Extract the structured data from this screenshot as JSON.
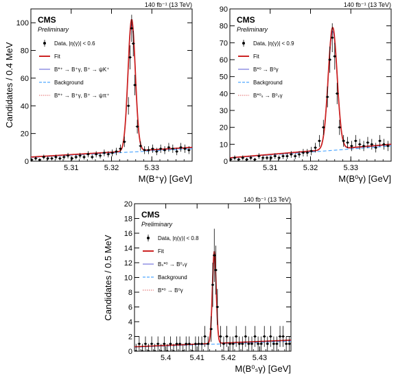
{
  "colors": {
    "data": "#000000",
    "fit": "#cc2222",
    "signal": "#5a5ad6",
    "background": "#4da6ff",
    "secondary": "#e06060"
  },
  "chart_data": [
    {
      "type": "scatter",
      "cms_label": "CMS",
      "preliminary_label": "Preliminary",
      "lumi_label": "140 fb⁻¹ (13 TeV)",
      "xlabel": "M(B⁺γ) [GeV]",
      "ylabel": "Candidates / 0.4 MeV",
      "xlim": [
        5.3,
        5.34
      ],
      "ylim": [
        0,
        110
      ],
      "xticks": [
        "5.31",
        "5.32",
        "5.33"
      ],
      "yticks": [
        "0",
        "20",
        "40",
        "60",
        "80",
        "100"
      ],
      "peak": 5.325,
      "peak_height": 95,
      "sigma": 0.0009,
      "bkg_left": 3,
      "bkg_right": 10,
      "legend": {
        "data": "Data, |η(γ)| < 0.6",
        "fit": "Fit",
        "signal": "B*⁺ → B⁺γ, B⁺ → ψK⁺",
        "background": "Background",
        "secondary": "B*⁺ → B⁺γ, B⁺ → ψπ⁺"
      },
      "points": [
        [
          5.3002,
          1
        ],
        [
          5.3012,
          2
        ],
        [
          5.3022,
          1
        ],
        [
          5.3032,
          3
        ],
        [
          5.3042,
          2
        ],
        [
          5.3052,
          2
        ],
        [
          5.3062,
          3
        ],
        [
          5.3072,
          2
        ],
        [
          5.3082,
          3
        ],
        [
          5.3092,
          4
        ],
        [
          5.3102,
          2
        ],
        [
          5.3112,
          3
        ],
        [
          5.3122,
          4
        ],
        [
          5.3132,
          3
        ],
        [
          5.3142,
          5
        ],
        [
          5.3152,
          3
        ],
        [
          5.3162,
          5
        ],
        [
          5.3172,
          4
        ],
        [
          5.3182,
          6
        ],
        [
          5.3192,
          5
        ],
        [
          5.3202,
          6
        ],
        [
          5.3212,
          7
        ],
        [
          5.3222,
          9
        ],
        [
          5.3232,
          14
        ],
        [
          5.3242,
          40
        ],
        [
          5.3246,
          75
        ],
        [
          5.325,
          96
        ],
        [
          5.3254,
          85
        ],
        [
          5.3258,
          55
        ],
        [
          5.3264,
          25
        ],
        [
          5.3272,
          11
        ],
        [
          5.3282,
          8
        ],
        [
          5.3292,
          8
        ],
        [
          5.3302,
          9
        ],
        [
          5.3312,
          7
        ],
        [
          5.3322,
          9
        ],
        [
          5.3332,
          8
        ],
        [
          5.3342,
          10
        ],
        [
          5.3352,
          9
        ],
        [
          5.3362,
          7
        ],
        [
          5.3372,
          10
        ],
        [
          5.3382,
          9
        ],
        [
          5.3392,
          8
        ]
      ]
    },
    {
      "type": "scatter",
      "cms_label": "CMS",
      "preliminary_label": "Preliminary",
      "lumi_label": "140 fb⁻¹ (13 TeV)",
      "xlabel": "M(B⁰γ) [GeV]",
      "ylabel": "",
      "xlim": [
        5.3,
        5.34
      ],
      "ylim": [
        0,
        90
      ],
      "xticks": [
        "5.31",
        "5.32",
        "5.33"
      ],
      "yticks": [
        "0",
        "10",
        "20",
        "30",
        "40",
        "50",
        "60",
        "70",
        "80",
        "90"
      ],
      "peak": 5.3255,
      "peak_height": 72,
      "sigma": 0.0011,
      "bkg_left": 2,
      "bkg_right": 10,
      "legend": {
        "data": "Data, |η(γ)| < 0.9",
        "fit": "Fit",
        "signal": "B*⁰ → B⁰γ",
        "background": "Background",
        "secondary": "B*⁰ₛ → B⁰ₛγ"
      },
      "points": [
        [
          5.3002,
          1
        ],
        [
          5.3012,
          2
        ],
        [
          5.3022,
          1
        ],
        [
          5.3032,
          2
        ],
        [
          5.3042,
          1
        ],
        [
          5.3052,
          2
        ],
        [
          5.3062,
          1
        ],
        [
          5.3072,
          3
        ],
        [
          5.3082,
          2
        ],
        [
          5.3092,
          2
        ],
        [
          5.3102,
          2
        ],
        [
          5.3112,
          3
        ],
        [
          5.3122,
          2
        ],
        [
          5.3132,
          3
        ],
        [
          5.3142,
          3
        ],
        [
          5.3152,
          4
        ],
        [
          5.3162,
          3
        ],
        [
          5.3172,
          4
        ],
        [
          5.3182,
          5
        ],
        [
          5.3192,
          5
        ],
        [
          5.3202,
          6
        ],
        [
          5.3212,
          8
        ],
        [
          5.3222,
          12
        ],
        [
          5.3232,
          20
        ],
        [
          5.3242,
          38
        ],
        [
          5.3248,
          60
        ],
        [
          5.3254,
          73
        ],
        [
          5.326,
          62
        ],
        [
          5.3266,
          40
        ],
        [
          5.3272,
          20
        ],
        [
          5.3282,
          12
        ],
        [
          5.3292,
          11
        ],
        [
          5.3302,
          9
        ],
        [
          5.3312,
          12
        ],
        [
          5.3322,
          10
        ],
        [
          5.3332,
          9
        ],
        [
          5.3342,
          11
        ],
        [
          5.3352,
          10
        ],
        [
          5.3362,
          8
        ],
        [
          5.3372,
          12
        ],
        [
          5.3382,
          10
        ],
        [
          5.3392,
          9
        ]
      ]
    },
    {
      "type": "scatter",
      "cms_label": "CMS",
      "preliminary_label": "Preliminary",
      "lumi_label": "140 fb⁻¹ (13 TeV)",
      "xlabel": "M(B⁰ₛγ) [GeV]",
      "ylabel": "Candidates / 0.5 MeV",
      "xlim": [
        5.39,
        5.44
      ],
      "ylim": [
        0,
        20
      ],
      "xticks": [
        "5.4",
        "5.41",
        "5.42",
        "5.43"
      ],
      "yticks": [
        "0",
        "2",
        "4",
        "6",
        "8",
        "10",
        "12",
        "14",
        "16",
        "18",
        "20"
      ],
      "peak": 5.4155,
      "peak_height": 12.5,
      "sigma": 0.0006,
      "bkg_left": 0.6,
      "bkg_right": 1.5,
      "legend": {
        "data": "Data, |η(γ)| < 0.8",
        "fit": "Fit",
        "signal": "Bₛ*⁰ → B⁰ₛγ",
        "background": "Background",
        "secondary": "B*⁰ → B⁰γ"
      },
      "points": [
        [
          5.3905,
          0
        ],
        [
          5.3915,
          1
        ],
        [
          5.3925,
          0
        ],
        [
          5.3935,
          1
        ],
        [
          5.3945,
          0
        ],
        [
          5.3955,
          1
        ],
        [
          5.3965,
          0
        ],
        [
          5.3975,
          1
        ],
        [
          5.3985,
          0
        ],
        [
          5.3995,
          1
        ],
        [
          5.4005,
          0
        ],
        [
          5.4015,
          1
        ],
        [
          5.4025,
          0
        ],
        [
          5.4035,
          1
        ],
        [
          5.4045,
          1
        ],
        [
          5.4055,
          0
        ],
        [
          5.4065,
          1
        ],
        [
          5.4075,
          1
        ],
        [
          5.4085,
          0
        ],
        [
          5.4095,
          1
        ],
        [
          5.4105,
          1
        ],
        [
          5.4115,
          1
        ],
        [
          5.4125,
          2
        ],
        [
          5.4135,
          1
        ],
        [
          5.4145,
          3
        ],
        [
          5.415,
          9
        ],
        [
          5.4155,
          13
        ],
        [
          5.416,
          11
        ],
        [
          5.4165,
          6
        ],
        [
          5.4175,
          2
        ],
        [
          5.4185,
          1
        ],
        [
          5.4195,
          2
        ],
        [
          5.4205,
          1
        ],
        [
          5.4215,
          1
        ],
        [
          5.4225,
          2
        ],
        [
          5.4235,
          1
        ],
        [
          5.4245,
          1
        ],
        [
          5.4255,
          2
        ],
        [
          5.4265,
          1
        ],
        [
          5.4275,
          1
        ],
        [
          5.4285,
          2
        ],
        [
          5.4295,
          1
        ],
        [
          5.4305,
          1
        ],
        [
          5.4315,
          2
        ],
        [
          5.4325,
          1
        ],
        [
          5.4335,
          2
        ],
        [
          5.4345,
          1
        ],
        [
          5.4355,
          1
        ],
        [
          5.4365,
          2
        ],
        [
          5.4375,
          2
        ],
        [
          5.4385,
          1
        ],
        [
          5.4395,
          1
        ]
      ]
    }
  ]
}
